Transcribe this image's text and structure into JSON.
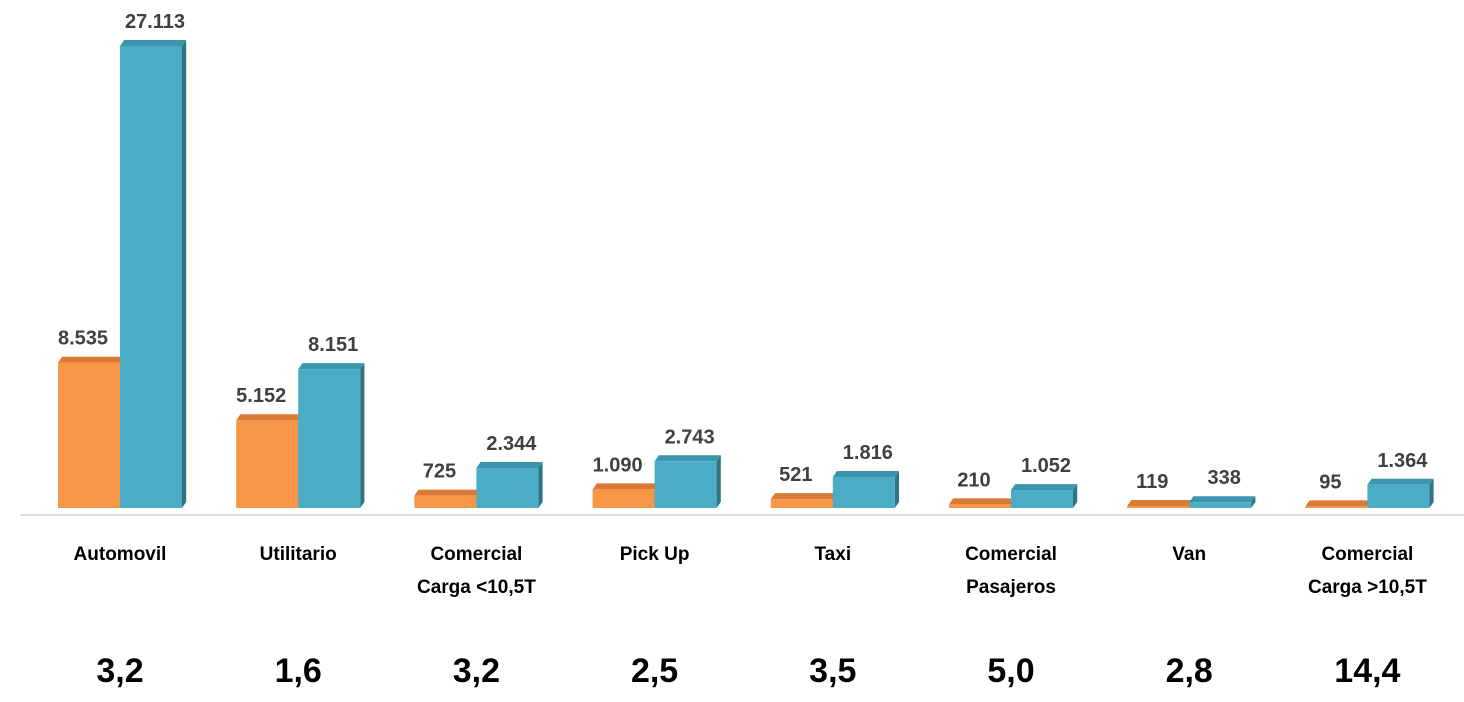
{
  "chart_data": {
    "type": "bar",
    "categories": [
      [
        "Automovil"
      ],
      [
        "Utilitario"
      ],
      [
        "Comercial",
        "Carga <10,5T"
      ],
      [
        "Pick Up"
      ],
      [
        "Taxi"
      ],
      [
        "Comercial",
        "Pasajeros"
      ],
      [
        "Van"
      ],
      [
        "Comercial",
        "Carga >10,5T"
      ]
    ],
    "series": [
      {
        "color": "#F79646",
        "values": [
          8535,
          5152,
          725,
          1090,
          521,
          210,
          119,
          95
        ],
        "labels": [
          "8.535",
          "5.152",
          "725",
          "1.090",
          "521",
          "210",
          "119",
          "95"
        ]
      },
      {
        "color": "#4BACC6",
        "values": [
          27113,
          8151,
          2344,
          2743,
          1816,
          1052,
          338,
          1364
        ],
        "labels": [
          "27.113",
          "8.151",
          "2.344",
          "2.743",
          "1.816",
          "1.052",
          "338",
          "1.364"
        ]
      }
    ],
    "ratios": [
      "3,2",
      "1,6",
      "3,2",
      "2,5",
      "3,5",
      "5,0",
      "2,8",
      "14,4"
    ],
    "ylim": [
      0,
      27113
    ],
    "grid": false,
    "legend": "none"
  }
}
